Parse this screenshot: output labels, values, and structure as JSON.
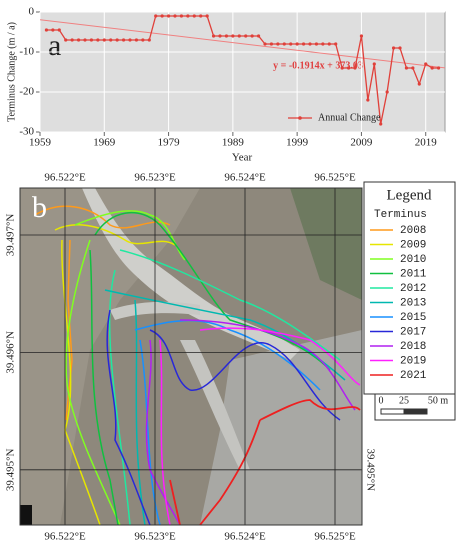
{
  "chart_data": [
    {
      "type": "line",
      "panel_label": "a",
      "y_label": "Terminus Change (m / a)",
      "x_label": "Year",
      "x": [
        1960,
        1961,
        1962,
        1963,
        1964,
        1965,
        1966,
        1967,
        1968,
        1969,
        1970,
        1971,
        1972,
        1973,
        1974,
        1975,
        1976,
        1977,
        1978,
        1979,
        1980,
        1981,
        1982,
        1983,
        1984,
        1985,
        1986,
        1987,
        1988,
        1989,
        1990,
        1991,
        1992,
        1993,
        1994,
        1995,
        1996,
        1997,
        1998,
        1999,
        2000,
        2001,
        2002,
        2003,
        2004,
        2005,
        2006,
        2007,
        2008,
        2009,
        2010,
        2011,
        2012,
        2013,
        2014,
        2015,
        2016,
        2017,
        2018,
        2019,
        2020,
        2021
      ],
      "series": [
        {
          "name": "Annual Change",
          "color": "#e0403a",
          "values": [
            -4.5,
            -4.5,
            -4.5,
            -7,
            -7,
            -7,
            -7,
            -7,
            -7,
            -7,
            -7,
            -7,
            -7,
            -7,
            -7,
            -7,
            -7,
            -1,
            -1,
            -1,
            -1,
            -1,
            -1,
            -1,
            -1,
            -1,
            -6,
            -6,
            -6,
            -6,
            -6,
            -6,
            -6,
            -6,
            -8,
            -8,
            -8,
            -8,
            -8,
            -8,
            -8,
            -8,
            -8,
            -8,
            -8,
            -8,
            -14,
            -14,
            -14,
            -6,
            -22,
            -13,
            -28,
            -20,
            -9,
            -9,
            -14,
            -14,
            -18,
            -13,
            -14,
            -14
          ]
        }
      ],
      "trend": {
        "label": "y = -0.1914x + 373.03",
        "slope": -0.1914,
        "intercept": 373.03,
        "color": "#f08080"
      },
      "xlim": [
        1959,
        2022
      ],
      "xticks": [
        1959,
        1969,
        1979,
        1989,
        1999,
        2009,
        2019
      ],
      "ylim": [
        -30,
        0
      ],
      "yticks": [
        -30,
        -20,
        -10,
        0
      ],
      "grid": true,
      "legend": "lower-right"
    },
    {
      "type": "map",
      "panel_label": "b",
      "xlim": [
        96.5215,
        96.5253
      ],
      "ylim": [
        39.49453,
        39.4974
      ],
      "xticks": [
        {
          "value": 96.522,
          "label": "96.522°E"
        },
        {
          "value": 96.523,
          "label": "96.523°E"
        },
        {
          "value": 96.524,
          "label": "96.524°E"
        },
        {
          "value": 96.525,
          "label": "96.525°E"
        }
      ],
      "yticks": [
        {
          "value": 39.495,
          "label": "39.495°N"
        },
        {
          "value": 39.496,
          "label": "39.496°N"
        },
        {
          "value": 39.497,
          "label": "39.497°N"
        }
      ],
      "legend": {
        "title": "Legend",
        "subtitle": "Terminus"
      },
      "series": [
        {
          "name": "2008",
          "color": "#ff9a1a"
        },
        {
          "name": "2009",
          "color": "#e6e600"
        },
        {
          "name": "2010",
          "color": "#80ff20"
        },
        {
          "name": "2011",
          "color": "#10c040"
        },
        {
          "name": "2012",
          "color": "#20e8a0"
        },
        {
          "name": "2013",
          "color": "#00b8b0"
        },
        {
          "name": "2015",
          "color": "#1890ff"
        },
        {
          "name": "2017",
          "color": "#2828d8"
        },
        {
          "name": "2018",
          "color": "#b020f0"
        },
        {
          "name": "2019",
          "color": "#ff20ff"
        },
        {
          "name": "2021",
          "color": "#ee2020"
        }
      ],
      "scale_bar": [
        "0",
        "25",
        "50 m"
      ]
    }
  ]
}
